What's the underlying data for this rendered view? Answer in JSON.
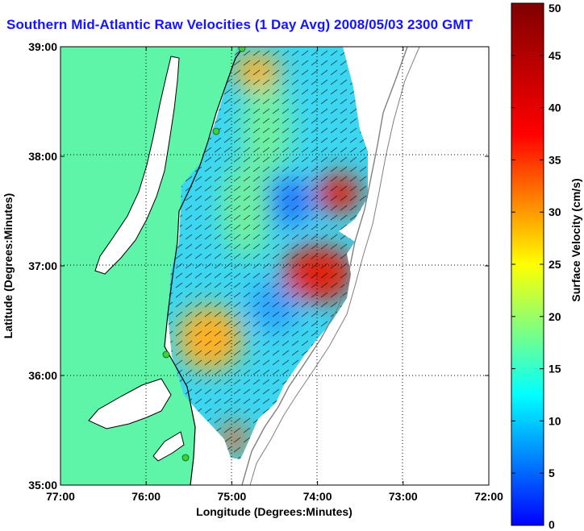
{
  "title": "Southern Mid-Atlantic Raw Velocities (1 Day Avg) 2008/05/03 2300 GMT",
  "chart_data": {
    "type": "heatmap",
    "title": "Southern Mid-Atlantic Raw Velocities (1 Day Avg) 2008/05/03 2300 GMT",
    "xlabel": "Longitude (Degrees:Minutes)",
    "ylabel": "Latitude (Degrees:Minutes)",
    "x_ticks": [
      "77:00",
      "76:00",
      "75:00",
      "74:00",
      "73:00",
      "72:00"
    ],
    "y_ticks": [
      "39:00",
      "38:00",
      "37:00",
      "36:00",
      "35:00"
    ],
    "xlim": [
      -77,
      -72
    ],
    "ylim": [
      35,
      39
    ],
    "grid": true,
    "colorbar": {
      "label": "Surface Velocity (cm/s)",
      "ticks": [
        "50",
        "45",
        "40",
        "35",
        "30",
        "25",
        "20",
        "15",
        "10",
        "5",
        "0"
      ],
      "range": [
        0,
        50
      ]
    },
    "hotspots": [
      {
        "lon": -73.7,
        "lat": 37.6,
        "speed": 45
      },
      {
        "lon": -73.95,
        "lat": 36.75,
        "speed": 46
      },
      {
        "lon": -75.3,
        "lat": 36.5,
        "speed": 34
      },
      {
        "lon": -74.8,
        "lat": 38.75,
        "speed": 30
      },
      {
        "lon": -74.9,
        "lat": 35.4,
        "speed": 38
      }
    ]
  },
  "colors": {
    "title": "#1414ff",
    "land": "#5ff5a9",
    "coastline": "#000000",
    "bathymetry": "#808080",
    "colormap": [
      "#0000ff",
      "#00ffff",
      "#ffff00",
      "#ff0000",
      "#800000"
    ]
  }
}
